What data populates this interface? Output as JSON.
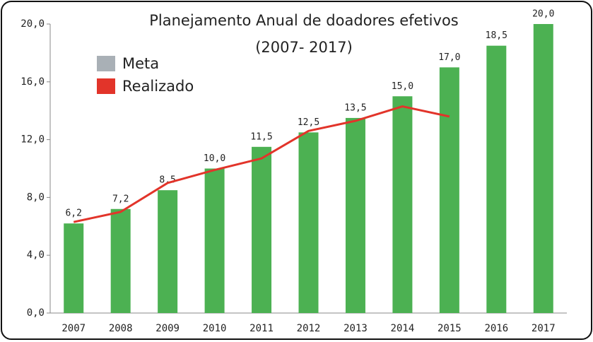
{
  "chart_data": {
    "type": "bar",
    "title": "Planejamento Anual de doadores efetivos",
    "subtitle": "(2007- 2017)",
    "categories": [
      "2007",
      "2008",
      "2009",
      "2010",
      "2011",
      "2012",
      "2013",
      "2014",
      "2015",
      "2016",
      "2017"
    ],
    "series": [
      {
        "name": "Meta",
        "type": "bar",
        "color": "#4cb152",
        "legend_color": "#a9b0b6",
        "values": [
          6.2,
          7.2,
          8.5,
          10.0,
          11.5,
          12.5,
          13.5,
          15.0,
          17.0,
          18.5,
          20.0
        ],
        "value_labels": [
          "6,2",
          "7,2",
          "8,5",
          "10,0",
          "11,5",
          "12,5",
          "13,5",
          "15,0",
          "17,0",
          "18,5",
          "20,0"
        ]
      },
      {
        "name": "Realizado",
        "type": "line",
        "color": "#e2342a",
        "values": [
          6.3,
          7.0,
          9.0,
          9.9,
          10.7,
          12.6,
          13.3,
          14.3,
          13.6,
          null,
          null
        ]
      }
    ],
    "ylim": [
      0,
      20
    ],
    "yticks": [
      {
        "value": 0,
        "label": "0,0"
      },
      {
        "value": 4,
        "label": "4,0"
      },
      {
        "value": 8,
        "label": "8,0"
      },
      {
        "value": 12,
        "label": "12,0"
      },
      {
        "value": 16,
        "label": "16,0"
      },
      {
        "value": 20,
        "label": "20,0"
      }
    ],
    "grid": false,
    "legend": "upper left"
  }
}
